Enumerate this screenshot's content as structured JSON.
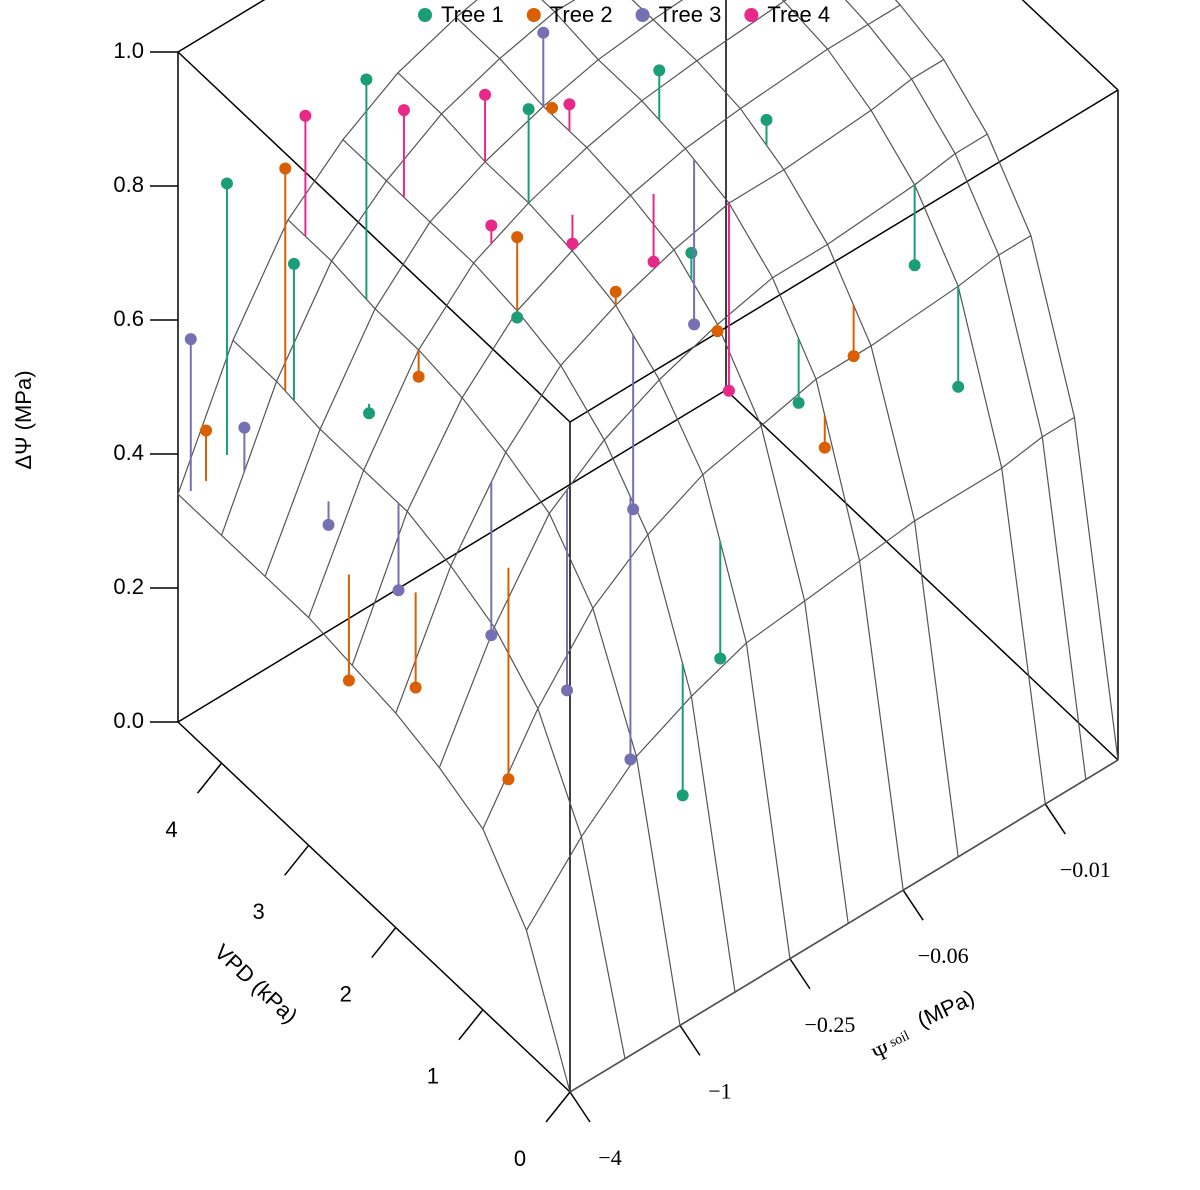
{
  "chart_data": {
    "type": "surface3d",
    "zlabel": "ΔΨ (MPa)",
    "ylabel": "VPD (kPa)",
    "xlabel_symbol": "Ψ",
    "xlabel_sub": "soil",
    "xlabel_unit": "(MPa)",
    "xscale": "log",
    "xlim": [
      -4,
      -0.004
    ],
    "xticks": [
      {
        "value": -4,
        "label": "−4"
      },
      {
        "value": -1,
        "label": "−1"
      },
      {
        "value": -0.25,
        "label": "−0.25"
      },
      {
        "value": -0.06,
        "label": "−0.06"
      },
      {
        "value": -0.01,
        "label": "−0.01"
      }
    ],
    "ylim": [
      0,
      4.5
    ],
    "yticks": [
      0,
      1,
      2,
      3,
      4
    ],
    "zlim": [
      0,
      1
    ],
    "zticks": [
      {
        "value": 0,
        "label": "0.0"
      },
      {
        "value": 0.2,
        "label": "0.2"
      },
      {
        "value": 0.4,
        "label": "0.4"
      },
      {
        "value": 0.6,
        "label": "0.6"
      },
      {
        "value": 0.8,
        "label": "0.8"
      },
      {
        "value": 1,
        "label": "1.0"
      }
    ],
    "surface": {
      "vpd": [
        0,
        0.5,
        1,
        1.5,
        2,
        2.5,
        3,
        3.5,
        4,
        4.5
      ],
      "psi": [
        -4,
        -2,
        -1,
        -0.5,
        -0.25,
        -0.12,
        -0.06,
        -0.03,
        -0.01,
        -0.006,
        -0.004
      ],
      "z": [
        [
          0,
          0,
          0,
          0,
          0,
          0,
          0,
          0,
          0,
          0,
          0
        ],
        [
          0.18,
          0.27,
          0.34,
          0.38,
          0.41,
          0.42,
          0.43,
          0.44,
          0.44,
          0.45,
          0.45
        ],
        [
          0.27,
          0.4,
          0.5,
          0.56,
          0.6,
          0.62,
          0.64,
          0.64,
          0.65,
          0.66,
          0.66
        ],
        [
          0.3,
          0.46,
          0.58,
          0.64,
          0.68,
          0.71,
          0.73,
          0.73,
          0.74,
          0.75,
          0.75
        ],
        [
          0.32,
          0.49,
          0.61,
          0.69,
          0.73,
          0.76,
          0.78,
          0.78,
          0.79,
          0.8,
          0.8
        ],
        [
          0.33,
          0.51,
          0.63,
          0.71,
          0.75,
          0.78,
          0.8,
          0.81,
          0.82,
          0.82,
          0.82
        ],
        [
          0.34,
          0.51,
          0.64,
          0.72,
          0.76,
          0.79,
          0.81,
          0.82,
          0.83,
          0.83,
          0.83
        ],
        [
          0.34,
          0.51,
          0.64,
          0.72,
          0.76,
          0.79,
          0.81,
          0.82,
          0.83,
          0.83,
          0.83
        ],
        [
          0.34,
          0.52,
          0.65,
          0.72,
          0.77,
          0.8,
          0.82,
          0.82,
          0.83,
          0.84,
          0.84
        ],
        [
          0.34,
          0.52,
          0.65,
          0.72,
          0.77,
          0.8,
          0.82,
          0.82,
          0.83,
          0.84,
          0.84
        ]
      ]
    },
    "series": [
      {
        "name": "Tree 1",
        "color": "#1b9e77",
        "vpd": [
          4.2,
          3.6,
          3,
          2.8,
          2.2,
          1.5,
          1.2,
          0.8,
          3.8,
          2.5,
          1.8,
          1,
          3.2,
          0.6
        ],
        "psi": [
          -3,
          -1,
          -0.25,
          -0.06,
          -0.03,
          -0.01,
          -0.06,
          -0.25,
          -2,
          -0.5,
          -0.12,
          -0.01,
          -1.5,
          -0.5
        ],
        "values": [
          0.82,
          0.97,
          0.9,
          0.88,
          0.83,
          0.62,
          0.58,
          0.35,
          0.72,
          0.7,
          0.78,
          0.5,
          0.55,
          0.22
        ]
      },
      {
        "name": "Tree 2",
        "color": "#d95f02",
        "vpd": [
          4.3,
          3.9,
          3,
          2.5,
          2,
          1.5,
          1.2,
          2.2,
          1.6,
          0.9,
          3.4,
          2.8
        ],
        "psi": [
          -3.5,
          -2,
          -1,
          -0.5,
          -0.25,
          -0.12,
          -0.03,
          -2.5,
          -1.5,
          -0.06,
          -0.12,
          -3
        ],
        "values": [
          0.45,
          0.85,
          0.6,
          0.82,
          0.75,
          0.7,
          0.6,
          0.3,
          0.2,
          0.55,
          0.8,
          0.25
        ]
      },
      {
        "name": "Tree 3",
        "color": "#7570b3",
        "vpd": [
          4.4,
          4,
          3.2,
          2.6,
          2,
          1.5,
          3.5,
          2.4,
          1.8,
          1.2
        ],
        "psi": [
          -3.8,
          -3,
          -2.5,
          -2,
          -1.2,
          -0.8,
          -0.12,
          -0.06,
          -0.25,
          -0.5
        ],
        "values": [
          0.58,
          0.48,
          0.42,
          0.38,
          0.35,
          0.3,
          0.9,
          0.55,
          0.45,
          0.2
        ]
      },
      {
        "name": "Tree 4",
        "color": "#e7298a",
        "vpd": [
          4.3,
          3.8,
          3.5,
          3.2,
          3,
          2.7,
          2.4,
          2
        ],
        "psi": [
          -1,
          -0.5,
          -0.25,
          -0.12,
          -0.4,
          -0.2,
          -0.1,
          -0.06
        ],
        "values": [
          0.83,
          0.85,
          0.86,
          0.83,
          0.76,
          0.72,
          0.68,
          0.5
        ]
      }
    ]
  }
}
